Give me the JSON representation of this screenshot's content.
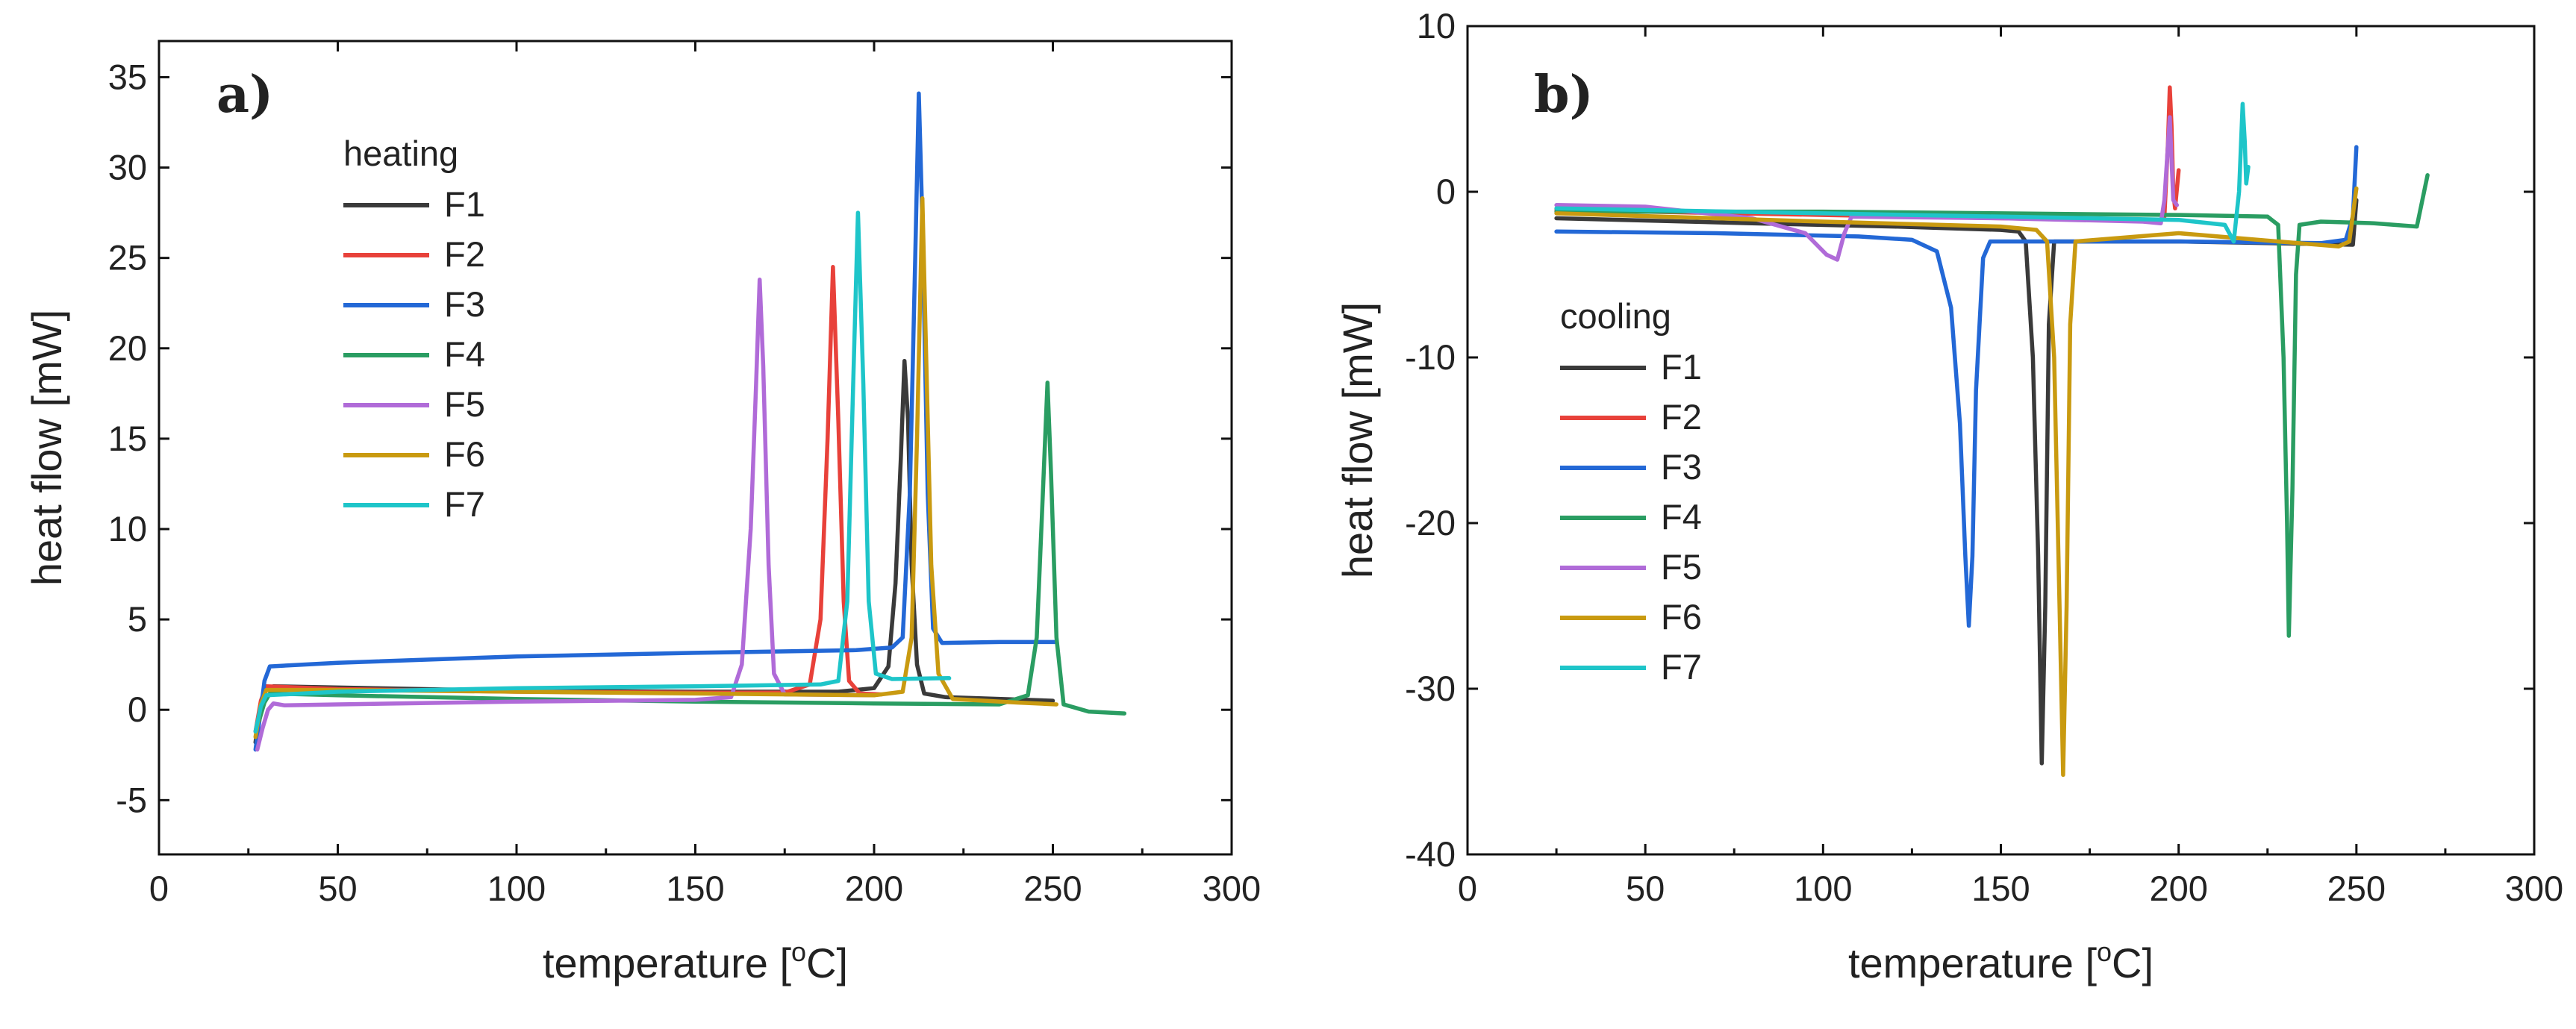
{
  "chart_data": [
    {
      "type": "line",
      "panel_label": "a)",
      "xlabel_main": "temperature [",
      "xlabel_sup": "o",
      "xlabel_end": "C]",
      "ylabel": "heat flow [mW]",
      "xlim": [
        0,
        300
      ],
      "ylim": [
        -8,
        37
      ],
      "xticks": [
        0,
        50,
        100,
        150,
        200,
        250,
        300
      ],
      "yticks": [
        -5,
        0,
        5,
        10,
        15,
        20,
        25,
        30,
        35
      ],
      "legend_title": "heating",
      "legend_position": "upper-left",
      "series": [
        {
          "name": "F1",
          "color": "#3a3a3a",
          "points": [
            [
              27,
              -1.8
            ],
            [
              28.5,
              0.3
            ],
            [
              30,
              1.1
            ],
            [
              32,
              1.3
            ],
            [
              60,
              1.2
            ],
            [
              100,
              1.05
            ],
            [
              150,
              1.0
            ],
            [
              190,
              1.0
            ],
            [
              200,
              1.2
            ],
            [
              204,
              2.4
            ],
            [
              206,
              7
            ],
            [
              207.5,
              14
            ],
            [
              208.5,
              19.3
            ],
            [
              209.5,
              16
            ],
            [
              210.5,
              8
            ],
            [
              212,
              2.5
            ],
            [
              214,
              0.9
            ],
            [
              220,
              0.7
            ],
            [
              250,
              0.5
            ]
          ]
        },
        {
          "name": "F2",
          "color": "#e8413a",
          "points": [
            [
              27,
              -1.2
            ],
            [
              28.5,
              0.5
            ],
            [
              30,
              1.3
            ],
            [
              50,
              1.15
            ],
            [
              100,
              1.0
            ],
            [
              150,
              0.95
            ],
            [
              175,
              0.95
            ],
            [
              182,
              1.4
            ],
            [
              185,
              5
            ],
            [
              187,
              15
            ],
            [
              188.5,
              24.5
            ],
            [
              190,
              16
            ],
            [
              191.5,
              6
            ],
            [
              193,
              1.6
            ],
            [
              196,
              0.9
            ],
            [
              202,
              0.85
            ]
          ]
        },
        {
          "name": "F3",
          "color": "#2368d6",
          "points": [
            [
              27,
              -2.2
            ],
            [
              28.5,
              0
            ],
            [
              29.5,
              1.6
            ],
            [
              31,
              2.4
            ],
            [
              50,
              2.6
            ],
            [
              100,
              2.95
            ],
            [
              150,
              3.15
            ],
            [
              195,
              3.3
            ],
            [
              205,
              3.45
            ],
            [
              208,
              4
            ],
            [
              210,
              12
            ],
            [
              211.5,
              25
            ],
            [
              212.5,
              34.1
            ],
            [
              213.5,
              27
            ],
            [
              215,
              12
            ],
            [
              216.5,
              4.5
            ],
            [
              219,
              3.7
            ],
            [
              235,
              3.75
            ],
            [
              251,
              3.75
            ]
          ]
        },
        {
          "name": "F4",
          "color": "#2a9d62",
          "points": [
            [
              28,
              -0.6
            ],
            [
              29.5,
              0.4
            ],
            [
              31,
              0.9
            ],
            [
              50,
              0.8
            ],
            [
              100,
              0.6
            ],
            [
              150,
              0.45
            ],
            [
              200,
              0.35
            ],
            [
              235,
              0.3
            ],
            [
              243,
              0.8
            ],
            [
              245.5,
              4
            ],
            [
              247,
              11
            ],
            [
              248.5,
              18.1
            ],
            [
              249.5,
              13
            ],
            [
              251,
              4
            ],
            [
              253,
              0.3
            ],
            [
              260,
              -0.1
            ],
            [
              270,
              -0.2
            ]
          ]
        },
        {
          "name": "F5",
          "color": "#b06bd8",
          "points": [
            [
              27.5,
              -2.2
            ],
            [
              29,
              -1
            ],
            [
              30.5,
              0
            ],
            [
              32,
              0.35
            ],
            [
              35,
              0.25
            ],
            [
              50,
              0.3
            ],
            [
              100,
              0.45
            ],
            [
              150,
              0.55
            ],
            [
              160,
              0.7
            ],
            [
              163,
              2.5
            ],
            [
              165.5,
              10
            ],
            [
              167,
              18
            ],
            [
              168,
              23.8
            ],
            [
              169,
              19
            ],
            [
              170.5,
              8
            ],
            [
              172,
              2
            ],
            [
              175,
              0.85
            ],
            [
              200,
              0.8
            ]
          ]
        },
        {
          "name": "F6",
          "color": "#c99a10",
          "points": [
            [
              27,
              -1.5
            ],
            [
              28.5,
              0.3
            ],
            [
              30,
              1.1
            ],
            [
              50,
              1.1
            ],
            [
              100,
              1.0
            ],
            [
              150,
              0.9
            ],
            [
              200,
              0.8
            ],
            [
              208,
              1
            ],
            [
              210.5,
              4
            ],
            [
              212,
              15
            ],
            [
              213.5,
              28.3
            ],
            [
              214.5,
              20
            ],
            [
              216,
              8
            ],
            [
              218,
              2
            ],
            [
              222,
              0.6
            ],
            [
              240,
              0.4
            ],
            [
              251,
              0.3
            ]
          ]
        },
        {
          "name": "F7",
          "color": "#1ec5c9",
          "points": [
            [
              27,
              -1.2
            ],
            [
              28.5,
              0.2
            ],
            [
              30,
              0.8
            ],
            [
              50,
              1.0
            ],
            [
              100,
              1.2
            ],
            [
              150,
              1.3
            ],
            [
              185,
              1.4
            ],
            [
              190,
              1.6
            ],
            [
              192.5,
              6
            ],
            [
              194,
              17
            ],
            [
              195.5,
              27.5
            ],
            [
              197,
              18
            ],
            [
              198.5,
              6
            ],
            [
              200.5,
              2
            ],
            [
              205,
              1.7
            ],
            [
              221,
              1.75
            ]
          ]
        }
      ]
    },
    {
      "type": "line",
      "panel_label": "b)",
      "xlabel_main": "temperature [",
      "xlabel_sup": "o",
      "xlabel_end": "C]",
      "ylabel": "heat flow [mW]",
      "xlim": [
        0,
        300
      ],
      "ylim": [
        -40,
        10
      ],
      "xticks": [
        0,
        50,
        100,
        150,
        200,
        250,
        300
      ],
      "yticks": [
        -40,
        -30,
        -20,
        -10,
        0,
        10
      ],
      "legend_title": "cooling",
      "legend_position": "left",
      "series": [
        {
          "name": "F1",
          "color": "#3a3a3a",
          "points": [
            [
              25,
              -1.6
            ],
            [
              80,
              -1.9
            ],
            [
              120,
              -2.1
            ],
            [
              150,
              -2.3
            ],
            [
              155,
              -2.4
            ],
            [
              157,
              -3
            ],
            [
              159,
              -10
            ],
            [
              160.5,
              -22
            ],
            [
              161.5,
              -34.5
            ],
            [
              162.5,
              -25
            ],
            [
              163.5,
              -8
            ],
            [
              165,
              -3
            ],
            [
              200,
              -3
            ],
            [
              249,
              -3.2
            ],
            [
              250,
              -0.5
            ]
          ]
        },
        {
          "name": "F2",
          "color": "#e8413a",
          "points": [
            [
              25,
              -1.1
            ],
            [
              100,
              -1.4
            ],
            [
              150,
              -1.6
            ],
            [
              180,
              -1.7
            ],
            [
              194,
              -1.8
            ],
            [
              196,
              -1.5
            ],
            [
              197,
              3
            ],
            [
              197.5,
              6.3
            ],
            [
              198,
              4
            ],
            [
              198.5,
              0
            ],
            [
              199,
              -1
            ],
            [
              200,
              1.3
            ]
          ]
        },
        {
          "name": "F3",
          "color": "#2368d6",
          "points": [
            [
              25,
              -2.4
            ],
            [
              70,
              -2.5
            ],
            [
              110,
              -2.7
            ],
            [
              125,
              -2.9
            ],
            [
              132,
              -3.6
            ],
            [
              136,
              -7
            ],
            [
              138.5,
              -14
            ],
            [
              140,
              -22
            ],
            [
              141,
              -26.2
            ],
            [
              142,
              -22
            ],
            [
              143,
              -12
            ],
            [
              145,
              -4
            ],
            [
              147,
              -3
            ],
            [
              200,
              -3
            ],
            [
              240,
              -3.1
            ],
            [
              247,
              -2.9
            ],
            [
              249,
              -1.5
            ],
            [
              250,
              2.7
            ]
          ]
        },
        {
          "name": "F4",
          "color": "#2a9d62",
          "points": [
            [
              25,
              -1.2
            ],
            [
              100,
              -1.2
            ],
            [
              150,
              -1.3
            ],
            [
              200,
              -1.4
            ],
            [
              225,
              -1.5
            ],
            [
              228,
              -2
            ],
            [
              229.5,
              -10
            ],
            [
              230.5,
              -20
            ],
            [
              231,
              -26.8
            ],
            [
              232,
              -18
            ],
            [
              233,
              -5
            ],
            [
              234,
              -2
            ],
            [
              240,
              -1.8
            ],
            [
              255,
              -1.9
            ],
            [
              267,
              -2.1
            ],
            [
              270,
              1
            ]
          ]
        },
        {
          "name": "F5",
          "color": "#b06bd8",
          "points": [
            [
              25,
              -0.8
            ],
            [
              50,
              -0.9
            ],
            [
              80,
              -1.6
            ],
            [
              95,
              -2.5
            ],
            [
              101,
              -3.8
            ],
            [
              104,
              -4.1
            ],
            [
              106,
              -2.5
            ],
            [
              108,
              -1.5
            ],
            [
              150,
              -1.6
            ],
            [
              190,
              -1.8
            ],
            [
              195,
              -1.9
            ],
            [
              196,
              -0.5
            ],
            [
              197.5,
              4.5
            ],
            [
              198,
              2
            ],
            [
              198.5,
              -0.5
            ],
            [
              199.5,
              -0.8
            ]
          ]
        },
        {
          "name": "F6",
          "color": "#c99a10",
          "points": [
            [
              25,
              -1.3
            ],
            [
              100,
              -1.8
            ],
            [
              150,
              -2.1
            ],
            [
              160,
              -2.3
            ],
            [
              163,
              -3
            ],
            [
              165,
              -10
            ],
            [
              166.5,
              -25
            ],
            [
              167.5,
              -35.2
            ],
            [
              168.5,
              -25
            ],
            [
              169.5,
              -8
            ],
            [
              171,
              -3
            ],
            [
              200,
              -2.5
            ],
            [
              245,
              -3.3
            ],
            [
              248,
              -3
            ],
            [
              250,
              0.2
            ]
          ]
        },
        {
          "name": "F7",
          "color": "#1ec5c9",
          "points": [
            [
              25,
              -1.0
            ],
            [
              100,
              -1.3
            ],
            [
              150,
              -1.5
            ],
            [
              200,
              -1.7
            ],
            [
              213,
              -2
            ],
            [
              215.5,
              -3
            ],
            [
              217,
              0
            ],
            [
              218,
              5.3
            ],
            [
              218.6,
              3
            ],
            [
              219,
              0.5
            ],
            [
              219.6,
              1.5
            ]
          ]
        }
      ]
    }
  ]
}
